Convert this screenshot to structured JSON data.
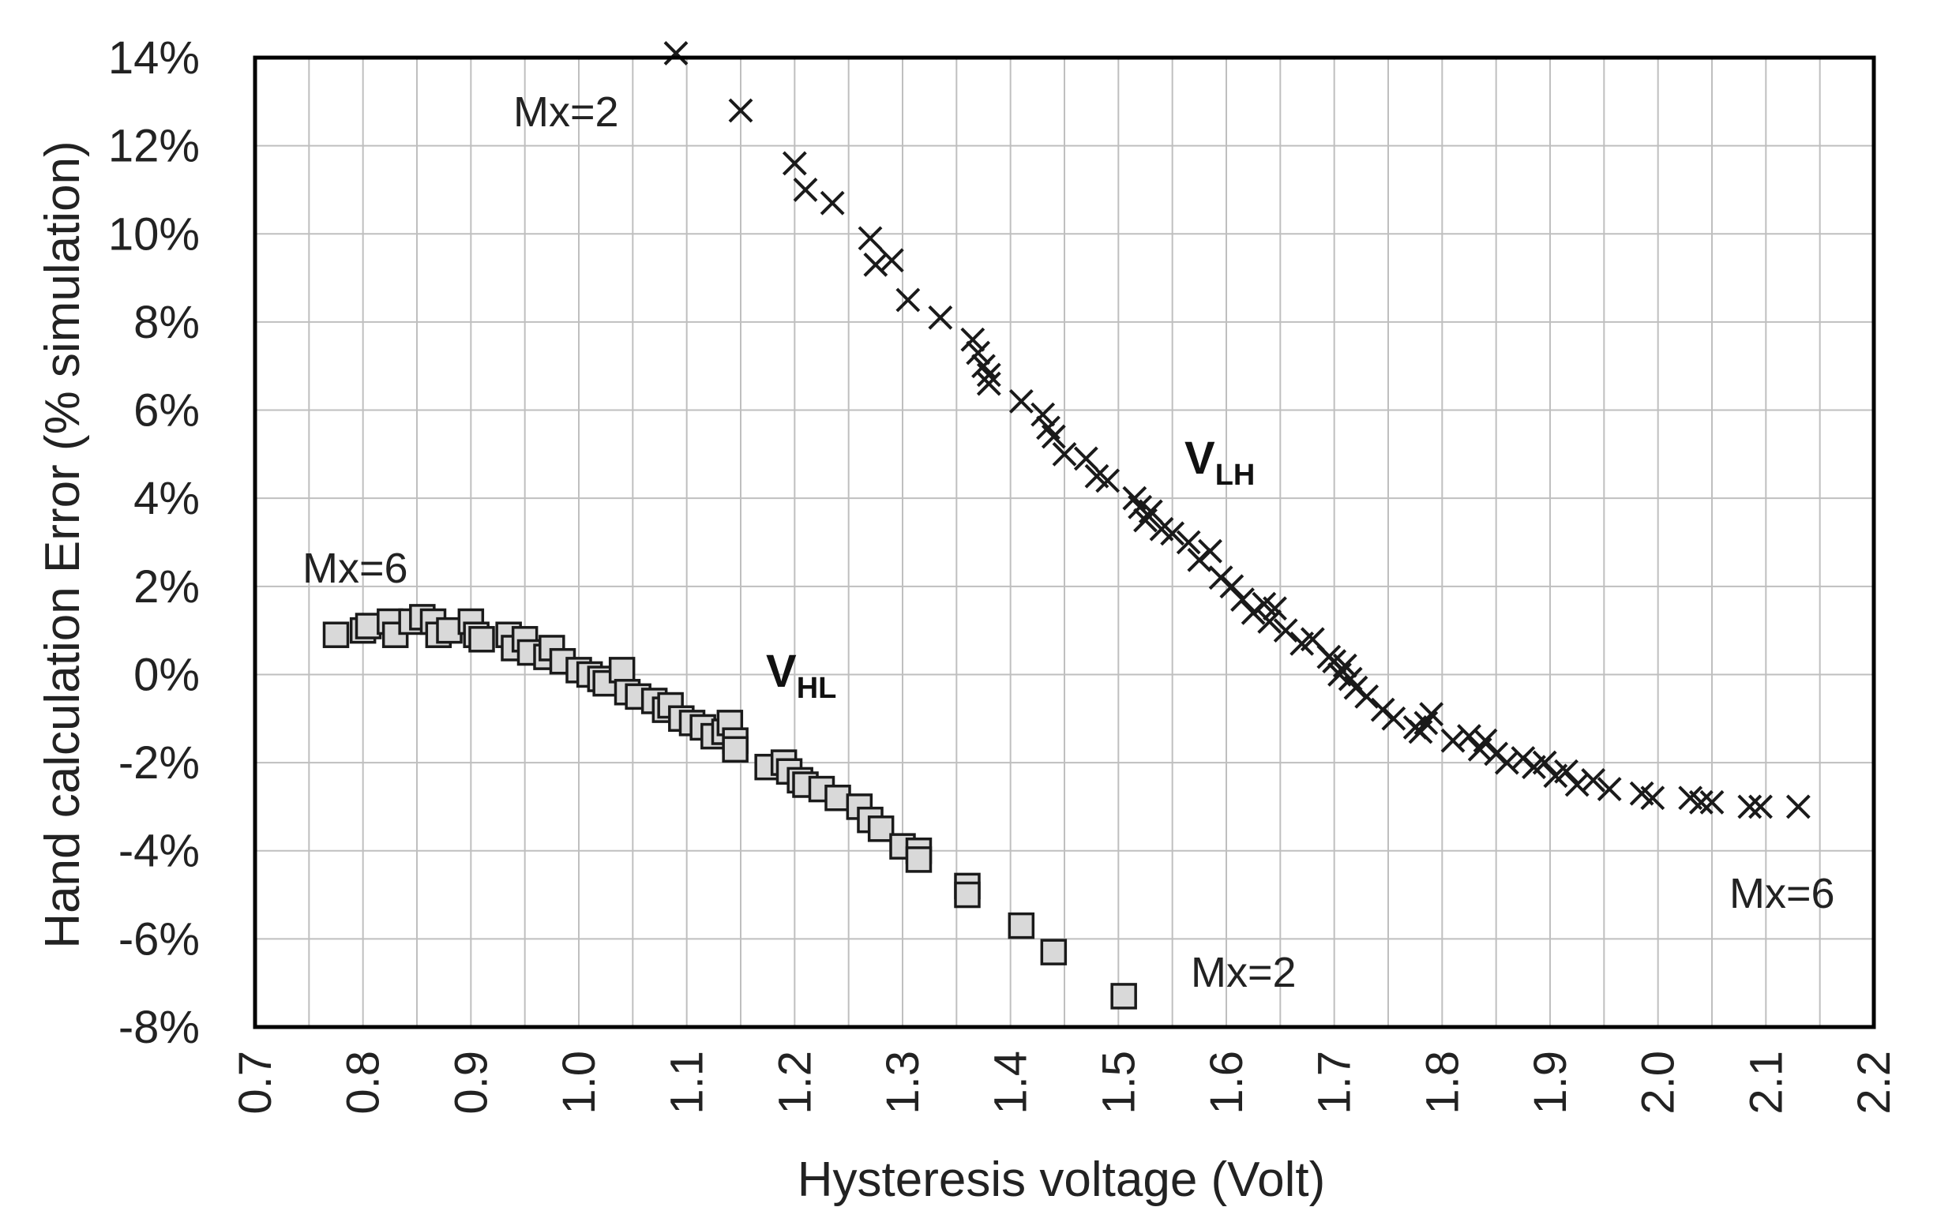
{
  "chart_data": {
    "type": "scatter",
    "title": "",
    "xlabel": "Hysteresis voltage (Volt)",
    "ylabel": "Hand calculation Error (% simulation)",
    "xlim": [
      0.7,
      2.2
    ],
    "ylim": [
      -8,
      14
    ],
    "grid": true,
    "x_ticks": [
      "0.7",
      "0.8",
      "0.9",
      "1.0",
      "1.1",
      "1.2",
      "1.3",
      "1.4",
      "1.5",
      "1.6",
      "1.7",
      "1.8",
      "1.9",
      "2.0",
      "2.1",
      "2.2"
    ],
    "y_ticks": [
      "14%",
      "12%",
      "10%",
      "8%",
      "6%",
      "4%",
      "2%",
      "0%",
      "-2%",
      "-4%",
      "-6%",
      "-8%"
    ],
    "series": [
      {
        "name": "VLH",
        "label_main": "V",
        "label_sub": "LH",
        "marker": "x",
        "x": [
          1.09,
          1.15,
          1.2,
          1.21,
          1.235,
          1.27,
          1.275,
          1.29,
          1.305,
          1.335,
          1.365,
          1.37,
          1.375,
          1.38,
          1.38,
          1.41,
          1.43,
          1.435,
          1.44,
          1.45,
          1.47,
          1.48,
          1.49,
          1.515,
          1.52,
          1.525,
          1.53,
          1.54,
          1.55,
          1.565,
          1.575,
          1.585,
          1.595,
          1.605,
          1.615,
          1.625,
          1.635,
          1.64,
          1.645,
          1.655,
          1.67,
          1.68,
          1.695,
          1.7,
          1.705,
          1.71,
          1.715,
          1.72,
          1.73,
          1.745,
          1.755,
          1.775,
          1.78,
          1.785,
          1.79,
          1.81,
          1.825,
          1.835,
          1.84,
          1.85,
          1.86,
          1.875,
          1.885,
          1.895,
          1.905,
          1.915,
          1.925,
          1.94,
          1.955,
          1.985,
          1.995,
          2.03,
          2.04,
          2.05,
          2.085,
          2.095,
          2.13
        ],
        "y": [
          14.1,
          12.8,
          11.6,
          11.0,
          10.7,
          9.9,
          9.3,
          9.4,
          8.5,
          8.1,
          7.6,
          7.3,
          7.0,
          6.8,
          6.6,
          6.2,
          5.9,
          5.6,
          5.4,
          5.0,
          4.9,
          4.5,
          4.4,
          4.0,
          3.8,
          3.5,
          3.7,
          3.3,
          3.2,
          3.0,
          2.6,
          2.8,
          2.2,
          2.0,
          1.7,
          1.4,
          1.6,
          1.2,
          1.5,
          1.0,
          0.7,
          0.8,
          0.4,
          0.3,
          0.0,
          0.2,
          -0.1,
          -0.3,
          -0.5,
          -0.8,
          -1.0,
          -1.2,
          -1.3,
          -1.1,
          -0.9,
          -1.5,
          -1.4,
          -1.7,
          -1.5,
          -1.8,
          -2.0,
          -1.9,
          -2.1,
          -2.0,
          -2.3,
          -2.2,
          -2.5,
          -2.4,
          -2.6,
          -2.7,
          -2.8,
          -2.8,
          -2.9,
          -2.9,
          -3.0,
          -3.0,
          -3.0
        ]
      },
      {
        "name": "VHL",
        "label_main": "V",
        "label_sub": "HL",
        "marker": "square",
        "x": [
          0.775,
          0.8,
          0.805,
          0.825,
          0.83,
          0.845,
          0.855,
          0.865,
          0.87,
          0.88,
          0.9,
          0.905,
          0.91,
          0.935,
          0.94,
          0.95,
          0.955,
          0.97,
          0.975,
          0.985,
          1.0,
          1.01,
          1.02,
          1.025,
          1.04,
          1.045,
          1.055,
          1.07,
          1.08,
          1.085,
          1.095,
          1.105,
          1.115,
          1.125,
          1.135,
          1.14,
          1.145,
          1.145,
          1.175,
          1.19,
          1.195,
          1.205,
          1.21,
          1.225,
          1.24,
          1.26,
          1.27,
          1.28,
          1.3,
          1.315,
          1.315,
          1.36,
          1.36,
          1.41,
          1.44,
          1.505
        ],
        "y": [
          0.9,
          1.0,
          1.1,
          1.2,
          0.9,
          1.2,
          1.3,
          1.2,
          0.9,
          1.0,
          1.2,
          0.9,
          0.8,
          0.9,
          0.6,
          0.8,
          0.5,
          0.4,
          0.6,
          0.3,
          0.1,
          0.0,
          -0.1,
          -0.2,
          0.1,
          -0.4,
          -0.5,
          -0.6,
          -0.8,
          -0.7,
          -1.0,
          -1.1,
          -1.2,
          -1.4,
          -1.3,
          -1.1,
          -1.5,
          -1.7,
          -2.1,
          -2.0,
          -2.2,
          -2.4,
          -2.5,
          -2.6,
          -2.8,
          -3.0,
          -3.3,
          -3.5,
          -3.9,
          -4.0,
          -4.2,
          -4.8,
          -5.0,
          -5.7,
          -6.3,
          -7.3
        ]
      }
    ],
    "annotations": [
      {
        "text": "Mx=2",
        "near_series": "VLH",
        "position": "top-left end of VLH"
      },
      {
        "text": "Mx=6",
        "near_series": "VLH",
        "position": "bottom-right end of VLH"
      },
      {
        "text": "Mx=6",
        "near_series": "VHL",
        "position": "top-left end of VHL"
      },
      {
        "text": "Mx=2",
        "near_series": "VHL",
        "position": "bottom-right end of VHL"
      }
    ]
  }
}
